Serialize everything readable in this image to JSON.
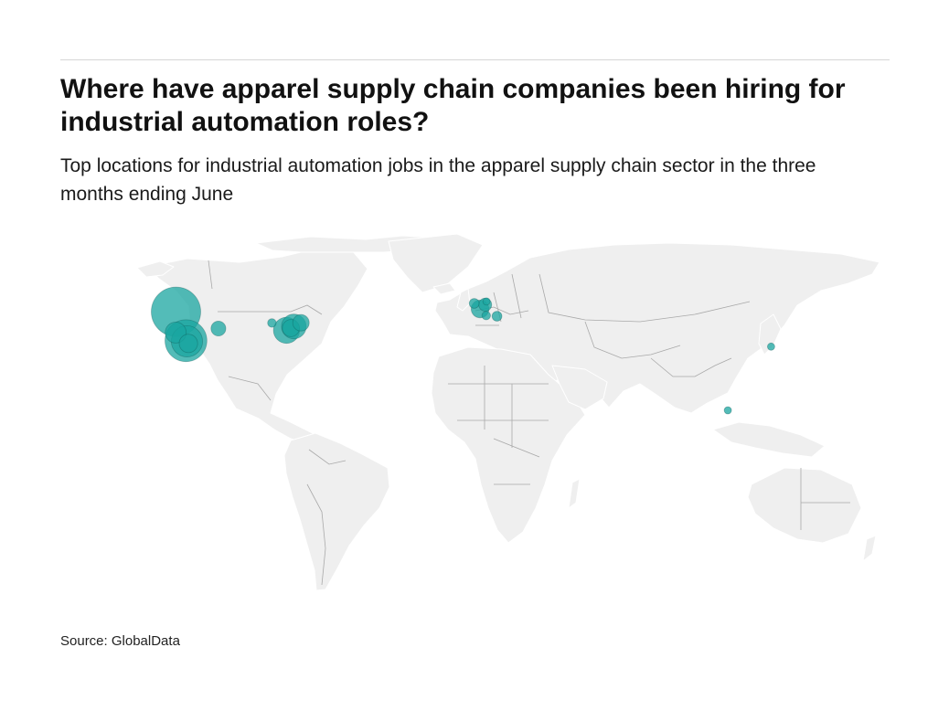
{
  "header": {
    "title": "Where have apparel supply chain companies been hiring for industrial automation roles?",
    "subtitle": "Top locations for industrial automation jobs in the apparel supply chain sector in the three months ending June"
  },
  "footer": {
    "source": "Source: GlobalData"
  },
  "map": {
    "projection": "equirectangular",
    "land_color": "#efefef",
    "border_color": "#a9a9a9",
    "bubble_color": "#1aa6a0",
    "bubble_dark_color": "#0c4f4c",
    "bubble_opacity": 0.75,
    "bubbles": [
      {
        "name": "Seattle",
        "lon": -122.3,
        "lat": 47.6,
        "value": 100
      },
      {
        "name": "Los Angeles",
        "lon": -118.2,
        "lat": 34.0,
        "value": 72
      },
      {
        "name": "Orange County",
        "lon": -117.8,
        "lat": 33.7,
        "value": 40
      },
      {
        "name": "San Francisco",
        "lon": -122.4,
        "lat": 37.8,
        "value": 18
      },
      {
        "name": "San Diego",
        "lon": -117.2,
        "lat": 32.7,
        "value": 14
      },
      {
        "name": "Denver",
        "lon": -104.9,
        "lat": 39.7,
        "value": 9
      },
      {
        "name": "Detroit",
        "lon": -83.0,
        "lat": 42.3,
        "value": 3
      },
      {
        "name": "Boston",
        "lon": -71.1,
        "lat": 42.4,
        "value": 11
      },
      {
        "name": "New York",
        "lon": -74.0,
        "lat": 40.7,
        "value": 25
      },
      {
        "name": "Philadelphia",
        "lon": -75.2,
        "lat": 39.9,
        "value": 12
      },
      {
        "name": "Washington",
        "lon": -77.0,
        "lat": 38.9,
        "value": 28
      },
      {
        "name": "London",
        "lon": -0.1,
        "lat": 51.5,
        "value": 4
      },
      {
        "name": "Amsterdam",
        "lon": 4.9,
        "lat": 52.4,
        "value": 2
      },
      {
        "name": "Paris",
        "lon": 2.3,
        "lat": 48.9,
        "value": 13
      },
      {
        "name": "Belgium",
        "lon": 4.4,
        "lat": 50.9,
        "value": 7
      },
      {
        "name": "Lyon",
        "lon": 4.8,
        "lat": 45.8,
        "value": 3
      },
      {
        "name": "Milan",
        "lon": 9.2,
        "lat": 45.5,
        "value": 4
      },
      {
        "name": "Shanghai",
        "lon": 121.5,
        "lat": 31.2,
        "value": 2
      },
      {
        "name": "Singapore",
        "lon": 103.8,
        "lat": 1.3,
        "value": 2
      }
    ]
  }
}
